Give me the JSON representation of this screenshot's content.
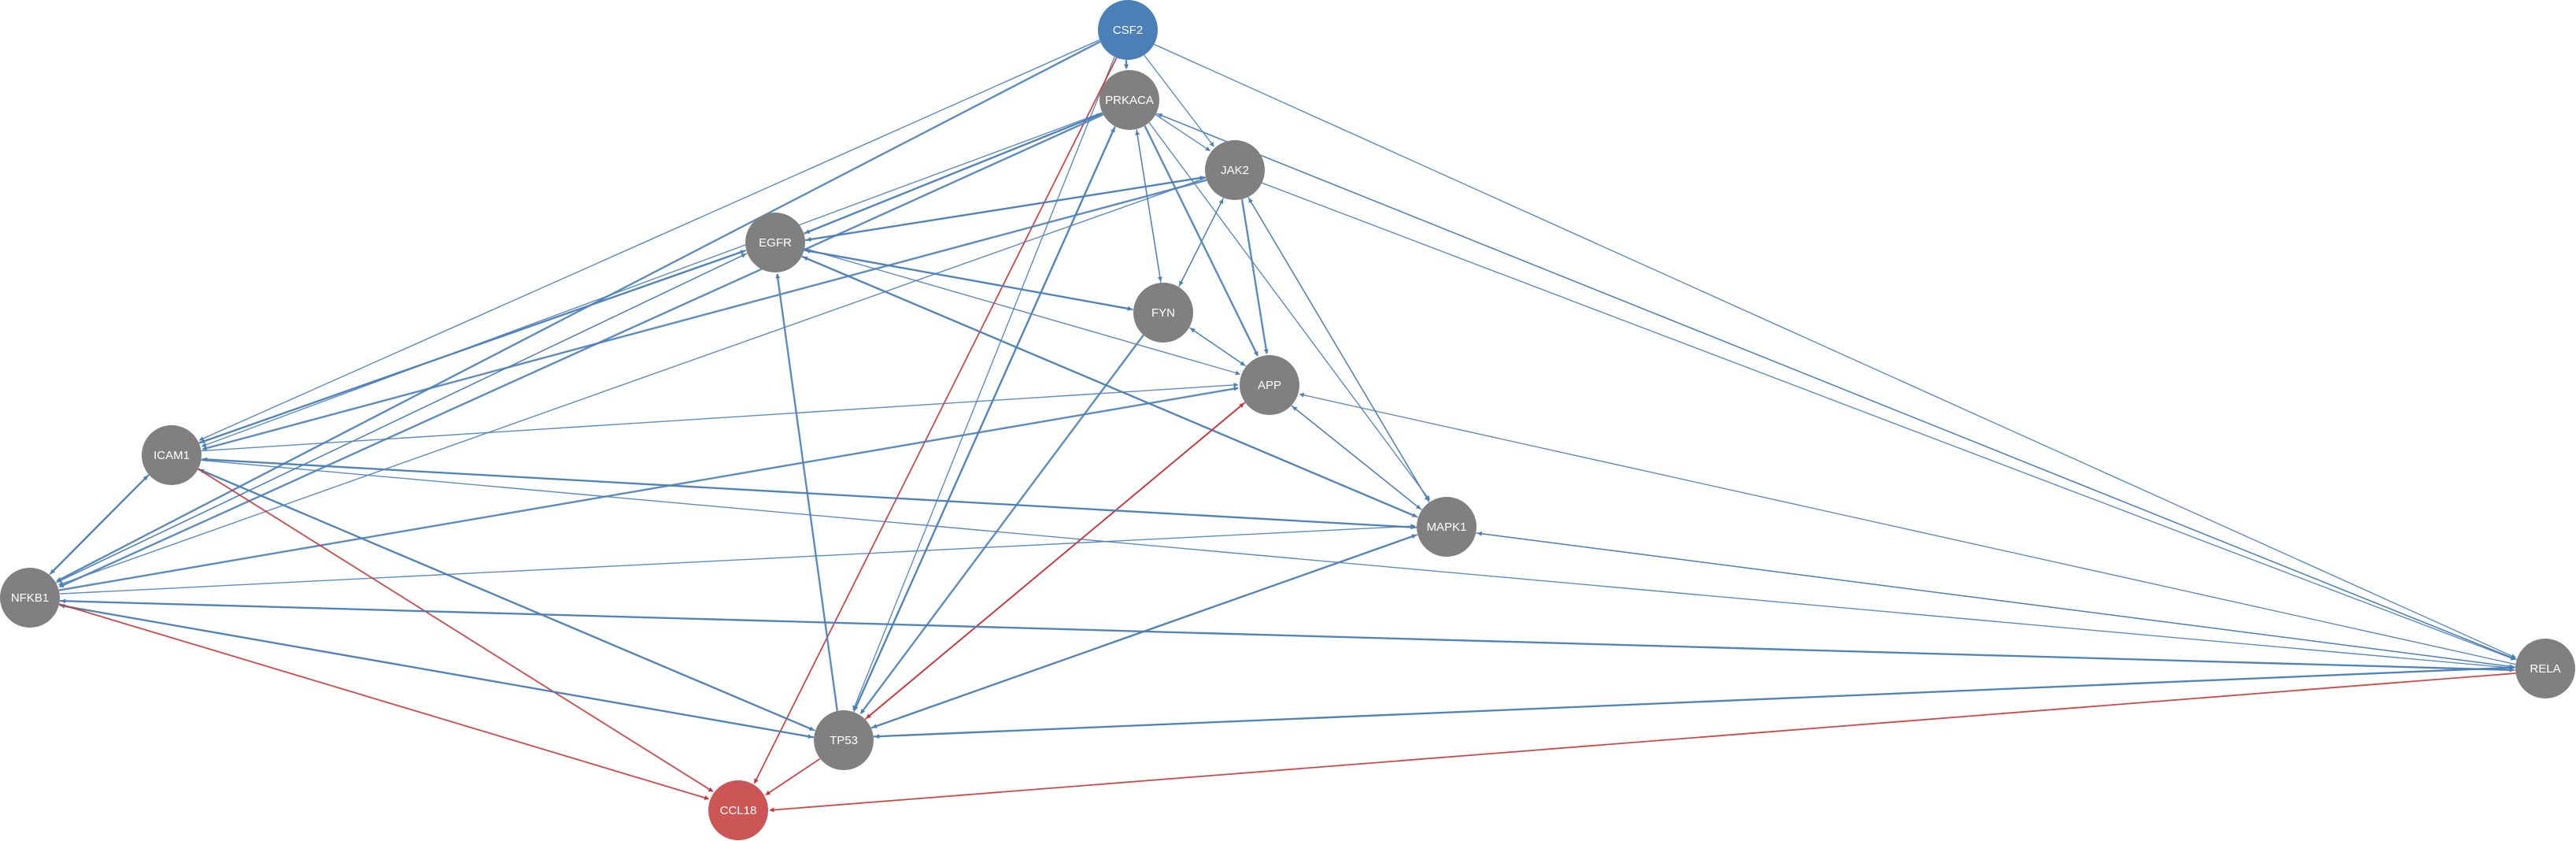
{
  "colors": {
    "background": "#ffffff",
    "node_default": "#808080",
    "node_source": "#4a7fb8",
    "node_target": "#cc5555",
    "edge_blue": "#4a7fb8",
    "edge_red": "#cc3333"
  },
  "network": {
    "nodes": [
      {
        "id": "CSF2",
        "label": "CSF2",
        "role": "source"
      },
      {
        "id": "PRKACA",
        "label": "PRKACA",
        "role": "default"
      },
      {
        "id": "JAK2",
        "label": "JAK2",
        "role": "default"
      },
      {
        "id": "EGFR",
        "label": "EGFR",
        "role": "default"
      },
      {
        "id": "FYN",
        "label": "FYN",
        "role": "default"
      },
      {
        "id": "APP",
        "label": "APP",
        "role": "default"
      },
      {
        "id": "ICAM1",
        "label": "ICAM1",
        "role": "default"
      },
      {
        "id": "MAPK1",
        "label": "MAPK1",
        "role": "default"
      },
      {
        "id": "NFKB1",
        "label": "NFKB1",
        "role": "default"
      },
      {
        "id": "RELA",
        "label": "RELA",
        "role": "default"
      },
      {
        "id": "TP53",
        "label": "TP53",
        "role": "default"
      },
      {
        "id": "CCL18",
        "label": "CCL18",
        "role": "target"
      }
    ],
    "edges": [
      {
        "source": "CSF2",
        "target": "PRKACA",
        "color": "blue"
      },
      {
        "source": "CSF2",
        "target": "JAK2",
        "color": "blue"
      },
      {
        "source": "CSF2",
        "target": "ICAM1",
        "color": "blue"
      },
      {
        "source": "CSF2",
        "target": "NFKB1",
        "color": "blue"
      },
      {
        "source": "CSF2",
        "target": "RELA",
        "color": "blue"
      },
      {
        "source": "CSF2",
        "target": "TP53",
        "color": "blue"
      },
      {
        "source": "CSF2",
        "target": "CCL18",
        "color": "red"
      },
      {
        "source": "PRKACA",
        "target": "JAK2",
        "color": "blue"
      },
      {
        "source": "PRKACA",
        "target": "EGFR",
        "color": "blue"
      },
      {
        "source": "EGFR",
        "target": "PRKACA",
        "color": "blue"
      },
      {
        "source": "PRKACA",
        "target": "FYN",
        "color": "blue"
      },
      {
        "source": "FYN",
        "target": "PRKACA",
        "color": "blue"
      },
      {
        "source": "PRKACA",
        "target": "APP",
        "color": "blue"
      },
      {
        "source": "PRKACA",
        "target": "MAPK1",
        "color": "blue"
      },
      {
        "source": "PRKACA",
        "target": "ICAM1",
        "color": "blue"
      },
      {
        "source": "PRKACA",
        "target": "NFKB1",
        "color": "blue"
      },
      {
        "source": "PRKACA",
        "target": "RELA",
        "color": "blue"
      },
      {
        "source": "RELA",
        "target": "PRKACA",
        "color": "blue"
      },
      {
        "source": "PRKACA",
        "target": "TP53",
        "color": "blue"
      },
      {
        "source": "TP53",
        "target": "PRKACA",
        "color": "blue"
      },
      {
        "source": "JAK2",
        "target": "EGFR",
        "color": "blue"
      },
      {
        "source": "EGFR",
        "target": "JAK2",
        "color": "blue"
      },
      {
        "source": "JAK2",
        "target": "FYN",
        "color": "blue"
      },
      {
        "source": "FYN",
        "target": "JAK2",
        "color": "blue"
      },
      {
        "source": "JAK2",
        "target": "APP",
        "color": "blue"
      },
      {
        "source": "JAK2",
        "target": "MAPK1",
        "color": "blue"
      },
      {
        "source": "MAPK1",
        "target": "JAK2",
        "color": "blue"
      },
      {
        "source": "JAK2",
        "target": "ICAM1",
        "color": "blue"
      },
      {
        "source": "JAK2",
        "target": "NFKB1",
        "color": "blue"
      },
      {
        "source": "JAK2",
        "target": "RELA",
        "color": "blue"
      },
      {
        "source": "EGFR",
        "target": "FYN",
        "color": "blue"
      },
      {
        "source": "FYN",
        "target": "EGFR",
        "color": "blue"
      },
      {
        "source": "EGFR",
        "target": "APP",
        "color": "blue"
      },
      {
        "source": "EGFR",
        "target": "MAPK1",
        "color": "blue"
      },
      {
        "source": "MAPK1",
        "target": "EGFR",
        "color": "blue"
      },
      {
        "source": "EGFR",
        "target": "ICAM1",
        "color": "blue"
      },
      {
        "source": "ICAM1",
        "target": "EGFR",
        "color": "blue"
      },
      {
        "source": "EGFR",
        "target": "NFKB1",
        "color": "blue"
      },
      {
        "source": "NFKB1",
        "target": "EGFR",
        "color": "blue"
      },
      {
        "source": "TP53",
        "target": "EGFR",
        "color": "blue"
      },
      {
        "source": "FYN",
        "target": "APP",
        "color": "blue"
      },
      {
        "source": "APP",
        "target": "FYN",
        "color": "blue"
      },
      {
        "source": "FYN",
        "target": "TP53",
        "color": "blue"
      },
      {
        "source": "APP",
        "target": "MAPK1",
        "color": "blue"
      },
      {
        "source": "MAPK1",
        "target": "APP",
        "color": "blue"
      },
      {
        "source": "APP",
        "target": "TP53",
        "color": "red"
      },
      {
        "source": "TP53",
        "target": "APP",
        "color": "red"
      },
      {
        "source": "ICAM1",
        "target": "APP",
        "color": "blue"
      },
      {
        "source": "NFKB1",
        "target": "APP",
        "color": "blue"
      },
      {
        "source": "RELA",
        "target": "APP",
        "color": "blue"
      },
      {
        "source": "ICAM1",
        "target": "MAPK1",
        "color": "blue"
      },
      {
        "source": "MAPK1",
        "target": "ICAM1",
        "color": "blue"
      },
      {
        "source": "NFKB1",
        "target": "MAPK1",
        "color": "blue"
      },
      {
        "source": "MAPK1",
        "target": "TP53",
        "color": "blue"
      },
      {
        "source": "TP53",
        "target": "MAPK1",
        "color": "blue"
      },
      {
        "source": "MAPK1",
        "target": "RELA",
        "color": "blue"
      },
      {
        "source": "RELA",
        "target": "MAPK1",
        "color": "blue"
      },
      {
        "source": "ICAM1",
        "target": "NFKB1",
        "color": "blue"
      },
      {
        "source": "NFKB1",
        "target": "ICAM1",
        "color": "blue"
      },
      {
        "source": "ICAM1",
        "target": "RELA",
        "color": "blue"
      },
      {
        "source": "ICAM1",
        "target": "TP53",
        "color": "blue"
      },
      {
        "source": "TP53",
        "target": "ICAM1",
        "color": "blue"
      },
      {
        "source": "ICAM1",
        "target": "CCL18",
        "color": "red"
      },
      {
        "source": "NFKB1",
        "target": "RELA",
        "color": "blue"
      },
      {
        "source": "RELA",
        "target": "NFKB1",
        "color": "blue"
      },
      {
        "source": "NFKB1",
        "target": "TP53",
        "color": "blue"
      },
      {
        "source": "TP53",
        "target": "NFKB1",
        "color": "blue"
      },
      {
        "source": "NFKB1",
        "target": "CCL18",
        "color": "red"
      },
      {
        "source": "RELA",
        "target": "TP53",
        "color": "blue"
      },
      {
        "source": "TP53",
        "target": "RELA",
        "color": "blue"
      },
      {
        "source": "RELA",
        "target": "CCL18",
        "color": "red"
      },
      {
        "source": "TP53",
        "target": "CCL18",
        "color": "red"
      }
    ]
  }
}
